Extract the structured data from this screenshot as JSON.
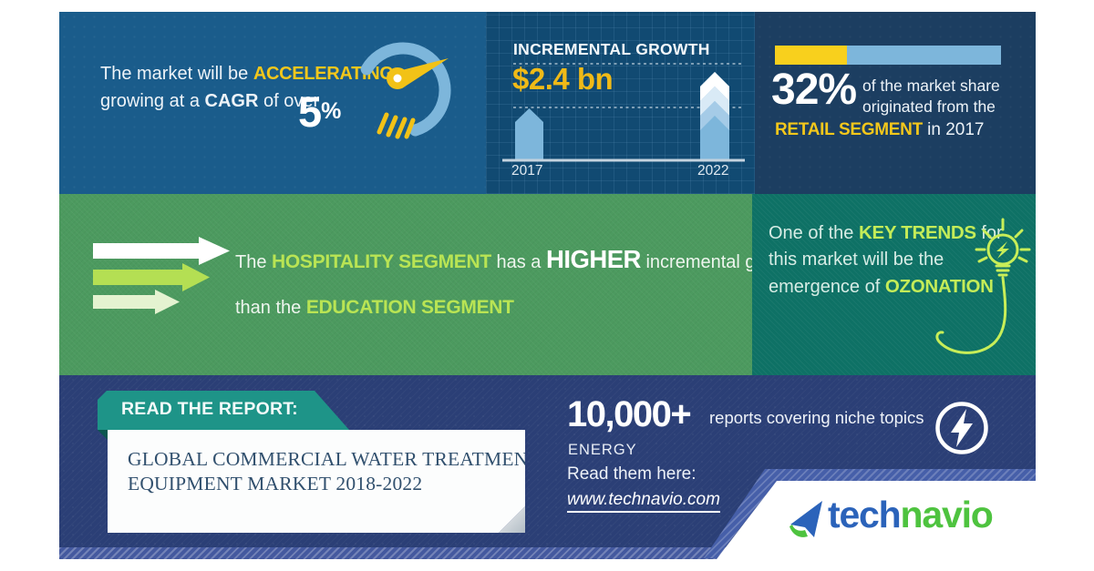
{
  "panel_cagr": {
    "line1_prefix": "The market will be ",
    "line1_accent": "ACCELERATING",
    "line2_prefix": "growing at a ",
    "line2_bold": "CAGR",
    "line2_suffix": " of over",
    "value": "5",
    "unit": "%"
  },
  "panel_growth": {
    "title": "INCREMENTAL GROWTH",
    "value": "$2.4 bn",
    "year_left": "2017",
    "year_right": "2022"
  },
  "panel_share": {
    "value": "32%",
    "line1": "of the market share",
    "line2": "originated from the",
    "accent": "RETAIL SEGMENT",
    "suffix": " in 2017",
    "bar_pct": 32
  },
  "panel_segments": {
    "prefix1": "The ",
    "accent1": "HOSPITALITY SEGMENT",
    "mid1": " has a ",
    "emphasis": "HIGHER",
    "tail1": " incremental growth",
    "prefix2": "than the ",
    "accent2": "EDUCATION SEGMENT"
  },
  "panel_trend": {
    "l1_prefix": "One of the ",
    "l1_accent": "KEY TRENDS",
    "l1_suffix": " for",
    "l2": "this market will be the",
    "l3_prefix": "emergence of ",
    "l3_accent": "OZONATION"
  },
  "report": {
    "banner": "READ THE REPORT:",
    "title1": "GLOBAL COMMERCIAL WATER TREATMENT",
    "title2": "EQUIPMENT MARKET 2018-2022"
  },
  "footer": {
    "count": "10,000+",
    "tagline": "reports covering niche topics",
    "category": "ENERGY",
    "read_label": "Read them here:",
    "url": "www.technavio.com"
  },
  "logo": {
    "part1": "tech",
    "part2": "navio"
  },
  "colors": {
    "panel_blue": "#1a5c8b",
    "panel_blue_dark": "#114a72",
    "panel_navy": "#1c3e61",
    "green": "#4c9a5f",
    "teal": "#0e7165",
    "bottom_navy": "#2b3f76",
    "accent_yellow": "#f3c71b",
    "accent_lime": "#c4ec58",
    "light_blue": "#7db6db",
    "banner_teal": "#1e9488",
    "logo_blue": "#2b63ba",
    "logo_green": "#4ec33f"
  },
  "chart_data": [
    {
      "type": "gauge",
      "label": "CAGR",
      "value_text": "5%",
      "note": "The market will be accelerating, growing at a CAGR of over 5%"
    },
    {
      "type": "bar",
      "title": "INCREMENTAL GROWTH",
      "annotation": "$2.4 bn",
      "categories": [
        "2017",
        "2022"
      ],
      "values_relative_pct": [
        58,
        100
      ],
      "ylabel": "",
      "note": "unlabeled axis; 2022 bar reaches upper dashed guide, 2017 bar reaches lower dashed guide"
    },
    {
      "type": "progress",
      "label": "Retail segment share of market, 2017",
      "value": 32,
      "max": 100,
      "segments": [
        {
          "name": "Retail",
          "pct": 32,
          "color": "#f8d01d"
        },
        {
          "name": "Other",
          "pct": 68,
          "color": "#7db6db"
        }
      ]
    }
  ]
}
